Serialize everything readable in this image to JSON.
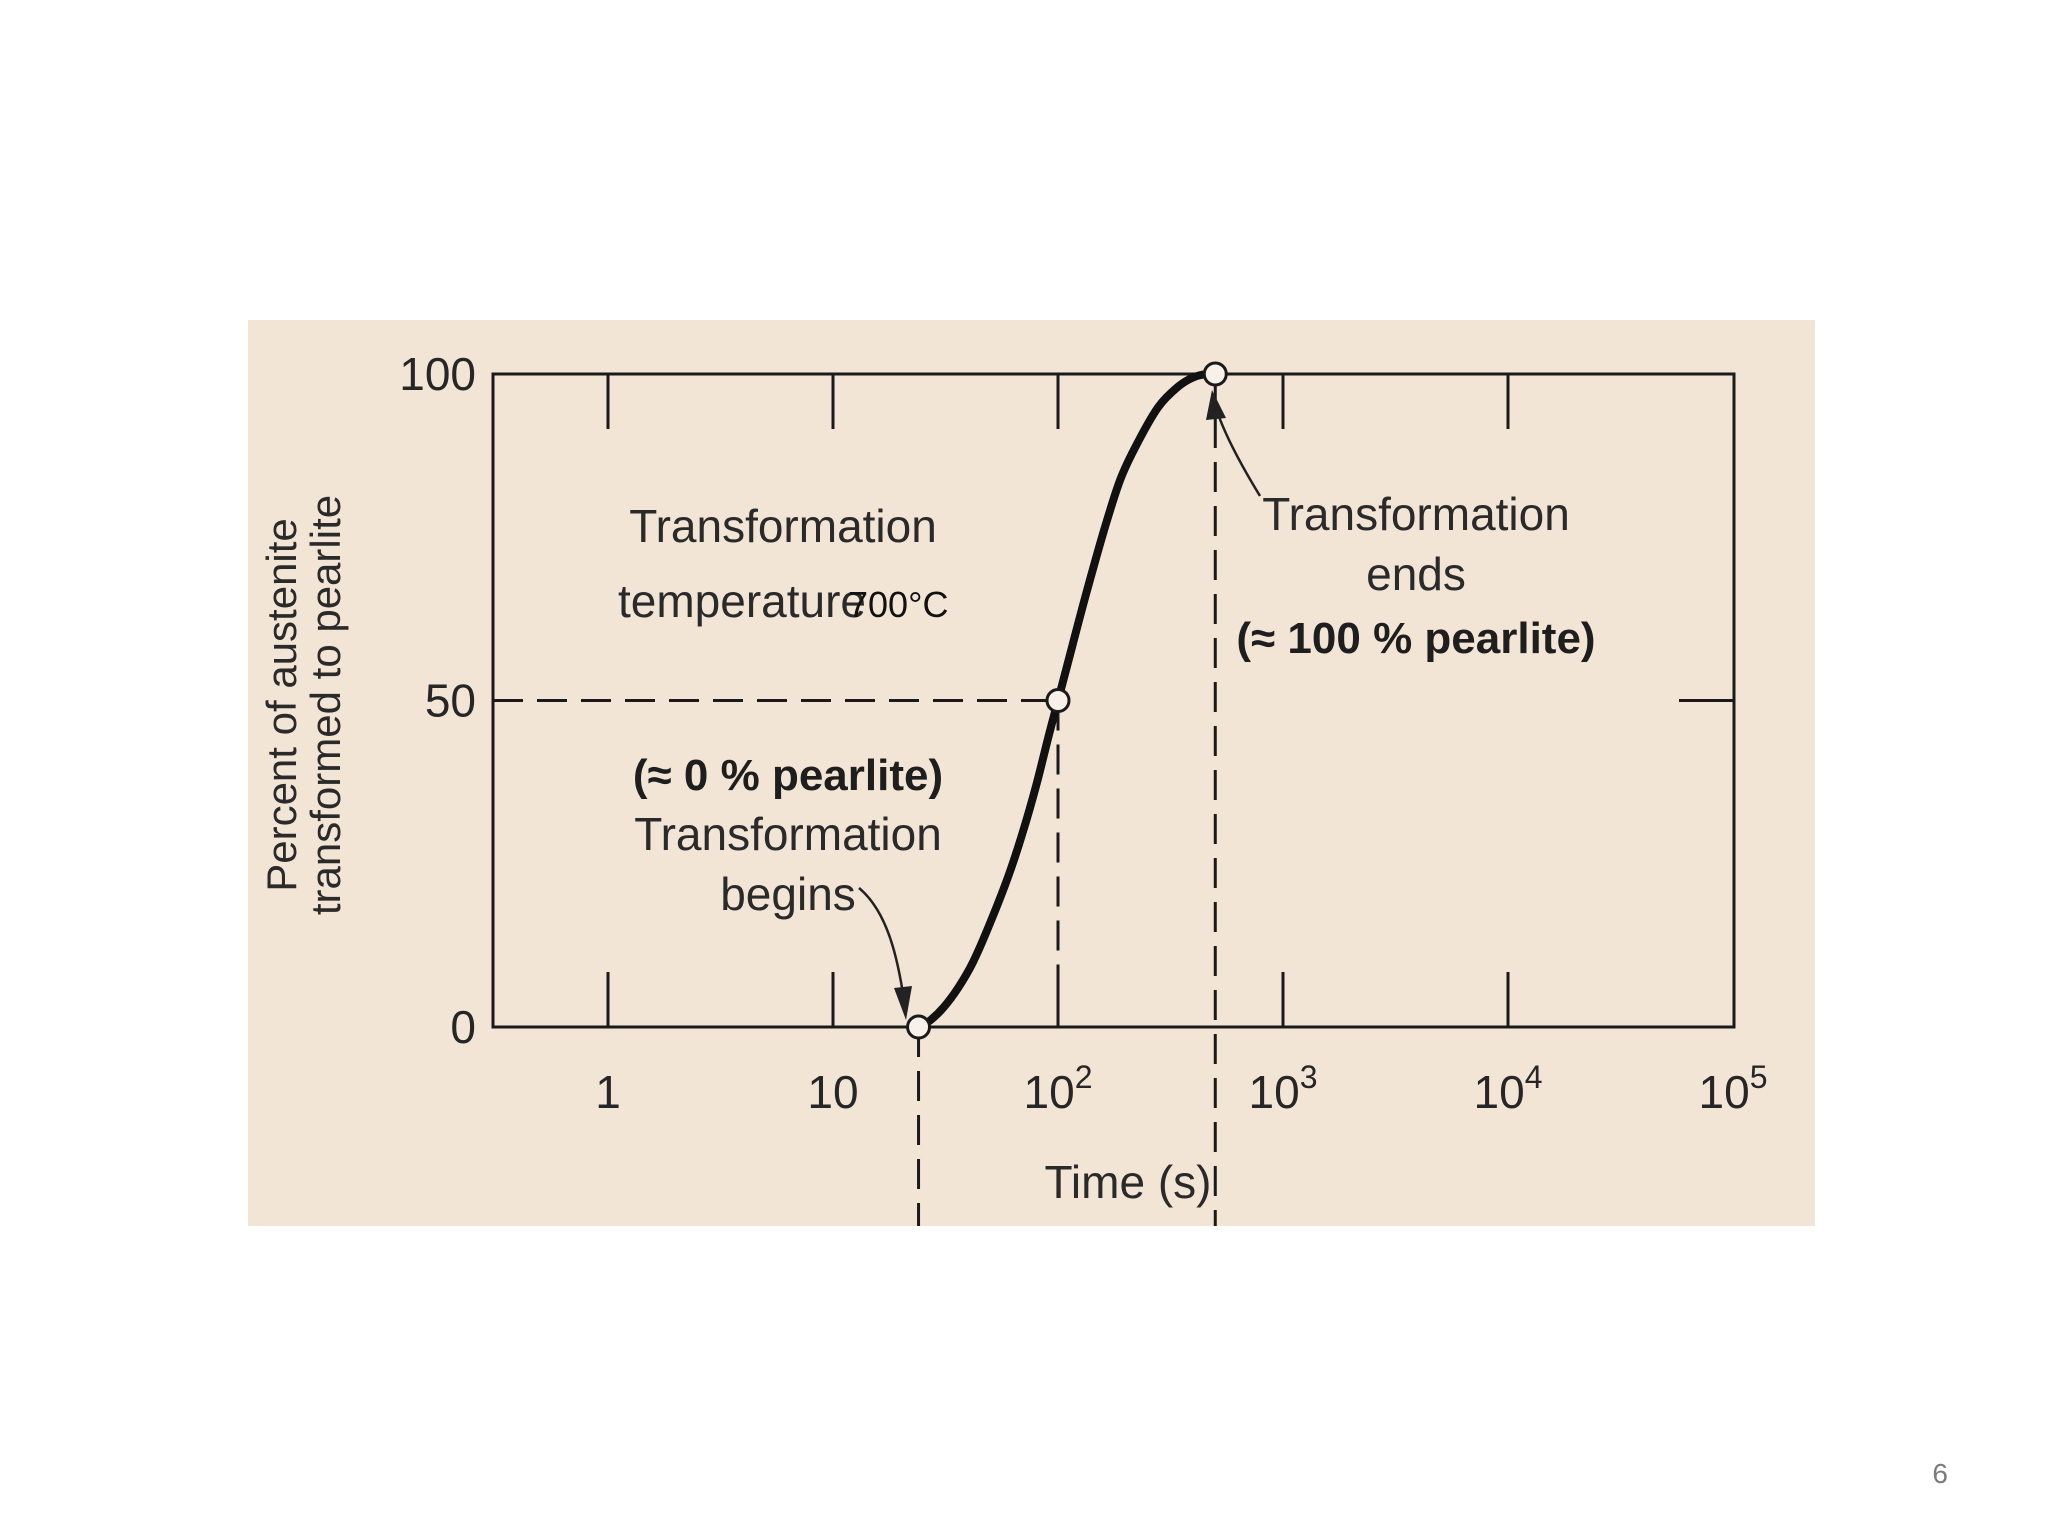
{
  "chart_data": {
    "type": "line",
    "xlabel": "Time (s)",
    "ylabel_line1": "Percent of austenite",
    "ylabel_line2": "transformed to pearlite",
    "x_scale": "log",
    "xlim": [
      0.5,
      100000
    ],
    "ylim": [
      0,
      100
    ],
    "x_ticks": [
      {
        "value": 1,
        "base": "1",
        "exp": ""
      },
      {
        "value": 10,
        "base": "10",
        "exp": ""
      },
      {
        "value": 100,
        "base": "10",
        "exp": "2"
      },
      {
        "value": 1000,
        "base": "10",
        "exp": "3"
      },
      {
        "value": 10000,
        "base": "10",
        "exp": "4"
      },
      {
        "value": 100000,
        "base": "10",
        "exp": "5"
      }
    ],
    "y_ticks": [
      {
        "value": 0,
        "label": "0"
      },
      {
        "value": 50,
        "label": "50"
      },
      {
        "value": 100,
        "label": "100"
      }
    ],
    "series": [
      {
        "x": [
          24,
          27,
          31,
          36,
          42,
          50,
          60,
          70,
          80,
          90,
          100,
          115,
          135,
          160,
          190,
          230,
          280,
          340,
          400,
          460,
          500
        ],
        "y": [
          0,
          1,
          3,
          6,
          10,
          16,
          23,
          30,
          37,
          44,
          50,
          58,
          67,
          76,
          84,
          90,
          95,
          98,
          99.5,
          100,
          100
        ]
      }
    ],
    "markers": [
      {
        "x": 24,
        "y": 0
      },
      {
        "x": 100,
        "y": 50
      },
      {
        "x": 500,
        "y": 100
      }
    ],
    "reference_lines": {
      "begin_x": 24,
      "half_x": 100,
      "end_x": 500,
      "half_y": 50
    },
    "annotations": {
      "temperature": {
        "line1": "Transformation",
        "line2": "temperature",
        "value": "700°C"
      },
      "begins": {
        "line1": "(≈ 0 % pearlite)",
        "line2": "Transformation",
        "line3": "begins"
      },
      "ends": {
        "line1": "Transformation",
        "line2": "ends",
        "line3": "(≈ 100 % pearlite)"
      }
    },
    "grid": false,
    "legend": "none"
  },
  "page": {
    "number": "6"
  }
}
